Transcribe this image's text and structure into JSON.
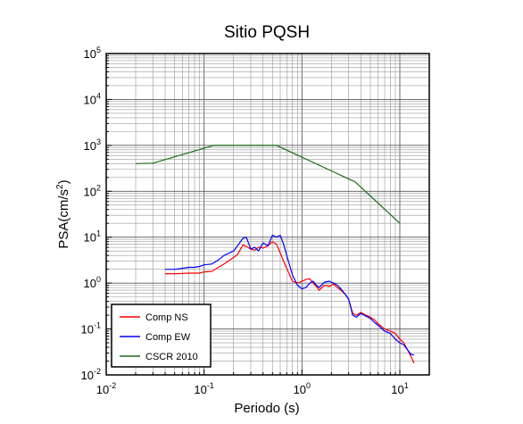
{
  "chart_data": {
    "type": "line",
    "title": "Sitio PQSH",
    "xlabel": "Periodo (s)",
    "ylabel": "PSA(cm/s2)",
    "xscale": "log",
    "yscale": "log",
    "xlim": [
      0.01,
      20
    ],
    "ylim": [
      0.01,
      100000
    ],
    "x_ticks": [
      {
        "mantissa": "10",
        "exp": "-2",
        "value": 0.01
      },
      {
        "mantissa": "10",
        "exp": "-1",
        "value": 0.1
      },
      {
        "mantissa": "10",
        "exp": "0",
        "value": 1
      },
      {
        "mantissa": "10",
        "exp": "1",
        "value": 10
      }
    ],
    "y_ticks": [
      {
        "mantissa": "10",
        "exp": "-2",
        "value": 0.01
      },
      {
        "mantissa": "10",
        "exp": "-1",
        "value": 0.1
      },
      {
        "mantissa": "10",
        "exp": "0",
        "value": 1
      },
      {
        "mantissa": "10",
        "exp": "1",
        "value": 10
      },
      {
        "mantissa": "10",
        "exp": "2",
        "value": 100
      },
      {
        "mantissa": "10",
        "exp": "3",
        "value": 1000
      },
      {
        "mantissa": "10",
        "exp": "4",
        "value": 10000
      },
      {
        "mantissa": "10",
        "exp": "5",
        "value": 100000
      }
    ],
    "grid": true,
    "legend_position": "bottom-left",
    "series": [
      {
        "name": "Comp NS",
        "color": "#ff0000",
        "x": [
          0.04,
          0.05,
          0.06,
          0.07,
          0.08,
          0.09,
          0.1,
          0.12,
          0.14,
          0.16,
          0.18,
          0.2,
          0.22,
          0.25,
          0.28,
          0.3,
          0.33,
          0.36,
          0.4,
          0.45,
          0.5,
          0.55,
          0.6,
          0.65,
          0.7,
          0.8,
          0.9,
          1.0,
          1.1,
          1.2,
          1.3,
          1.4,
          1.5,
          1.7,
          1.9,
          2.1,
          2.3,
          2.5,
          2.8,
          3.0,
          3.3,
          3.6,
          4.0,
          4.5,
          5.0,
          5.5,
          6.0,
          7.0,
          8.0,
          9.0,
          10.0,
          11.0,
          12.0,
          13.0,
          14.0
        ],
        "y": [
          1.6,
          1.6,
          1.62,
          1.65,
          1.65,
          1.65,
          1.75,
          1.8,
          2.2,
          2.6,
          3.1,
          3.6,
          4.2,
          6.8,
          6.0,
          5.5,
          5.2,
          6.1,
          5.8,
          6.5,
          8.0,
          7.0,
          4.5,
          3.0,
          2.1,
          1.1,
          1.0,
          1.1,
          1.2,
          1.25,
          1.0,
          0.85,
          0.7,
          0.9,
          0.85,
          0.95,
          0.8,
          0.7,
          0.55,
          0.45,
          0.22,
          0.2,
          0.23,
          0.2,
          0.18,
          0.16,
          0.13,
          0.1,
          0.09,
          0.08,
          0.06,
          0.05,
          0.035,
          0.025,
          0.018
        ]
      },
      {
        "name": "Comp EW",
        "color": "#0000ff",
        "x": [
          0.04,
          0.05,
          0.06,
          0.07,
          0.08,
          0.09,
          0.1,
          0.12,
          0.14,
          0.16,
          0.18,
          0.2,
          0.22,
          0.25,
          0.27,
          0.3,
          0.33,
          0.36,
          0.4,
          0.45,
          0.5,
          0.55,
          0.6,
          0.65,
          0.7,
          0.8,
          0.9,
          1.0,
          1.1,
          1.2,
          1.3,
          1.4,
          1.5,
          1.7,
          1.9,
          2.1,
          2.3,
          2.5,
          2.8,
          3.0,
          3.3,
          3.6,
          4.0,
          4.5,
          5.0,
          5.5,
          6.0,
          7.0,
          8.0,
          9.0,
          10.0,
          11.0,
          12.0,
          13.0,
          14.0
        ],
        "y": [
          2.0,
          2.0,
          2.1,
          2.2,
          2.2,
          2.3,
          2.5,
          2.6,
          3.2,
          4.0,
          4.5,
          5.0,
          6.5,
          9.5,
          10.0,
          5.5,
          6.0,
          5.0,
          7.5,
          6.5,
          11.0,
          10.0,
          11.0,
          7.0,
          4.0,
          1.5,
          0.9,
          0.75,
          0.8,
          1.0,
          1.1,
          0.9,
          0.8,
          1.05,
          1.1,
          1.0,
          0.9,
          0.75,
          0.55,
          0.45,
          0.2,
          0.18,
          0.22,
          0.19,
          0.17,
          0.14,
          0.12,
          0.09,
          0.08,
          0.06,
          0.05,
          0.045,
          0.035,
          0.028,
          0.027
        ]
      },
      {
        "name": "CSCR 2010",
        "color": "#1a6b1a",
        "x": [
          0.02,
          0.03,
          0.125,
          0.55,
          3.5,
          10
        ],
        "y": [
          400,
          410,
          1000,
          1000,
          160,
          20
        ]
      }
    ]
  }
}
